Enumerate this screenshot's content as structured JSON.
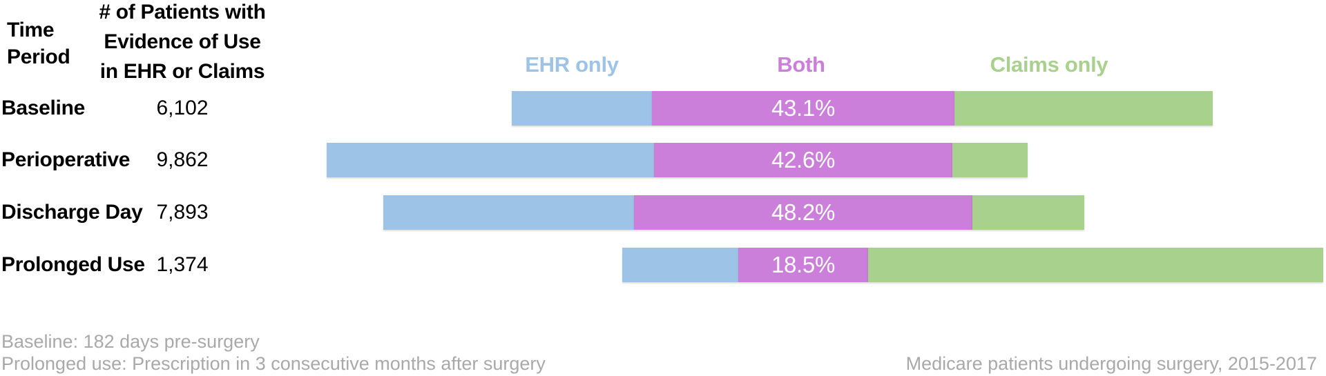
{
  "table": {
    "col1_header_lines": [
      "Time",
      "Period"
    ],
    "col2_header_lines": [
      "# of Patients with",
      "Evidence of Use",
      "in EHR or Claims"
    ],
    "rows": [
      {
        "label": "Baseline",
        "count": "6,102"
      },
      {
        "label": "Perioperative",
        "count": "9,862"
      },
      {
        "label": "Discharge Day",
        "count": "7,893"
      },
      {
        "label": "Prolonged Use",
        "count": "1,374"
      }
    ]
  },
  "legend": [
    {
      "label": "EHR only",
      "color": "#9DC3E6"
    },
    {
      "label": "Both",
      "color": "#CB7EDA"
    },
    {
      "label": "Claims only",
      "color": "#A9D18E"
    }
  ],
  "chart_data": {
    "type": "bar",
    "orientation": "horizontal",
    "subtype": "100%-stacked, middle segment centered on common axis",
    "categories": [
      "Baseline",
      "Perioperative",
      "Discharge Day",
      "Prolonged Use"
    ],
    "patient_counts": [
      6102,
      9862,
      7893,
      1374
    ],
    "series": [
      {
        "name": "EHR only",
        "color": "#9DC3E6",
        "values": [
          20.0,
          46.7,
          35.8,
          16.6
        ]
      },
      {
        "name": "Both",
        "color": "#CB7EDA",
        "values": [
          43.1,
          42.6,
          48.2,
          18.5
        ]
      },
      {
        "name": "Claims only",
        "color": "#A9D18E",
        "values": [
          36.9,
          10.7,
          16.0,
          64.9
        ]
      }
    ],
    "data_labels": {
      "series": "Both",
      "values": [
        "43.1%",
        "42.6%",
        "48.2%",
        "18.5%"
      ]
    },
    "title": "",
    "xlabel": "",
    "ylabel": "",
    "grid": false,
    "legend_position": "top, colored column headers"
  },
  "footnotes": {
    "left_lines": [
      "Baseline: 182 days pre-surgery",
      "Prolonged use: Prescription in 3 consecutive months after surgery"
    ],
    "right": "Medicare patients undergoing surgery, 2015-2017"
  },
  "colors": {
    "ehr_only": "#9DC3E6",
    "both": "#CB7EDA",
    "claims_only": "#A9D18E",
    "percent_label_text": "#FFFFFF",
    "footnote_gray": "#A9A9A9",
    "text_black": "#000000",
    "background": "#FFFFFF"
  }
}
